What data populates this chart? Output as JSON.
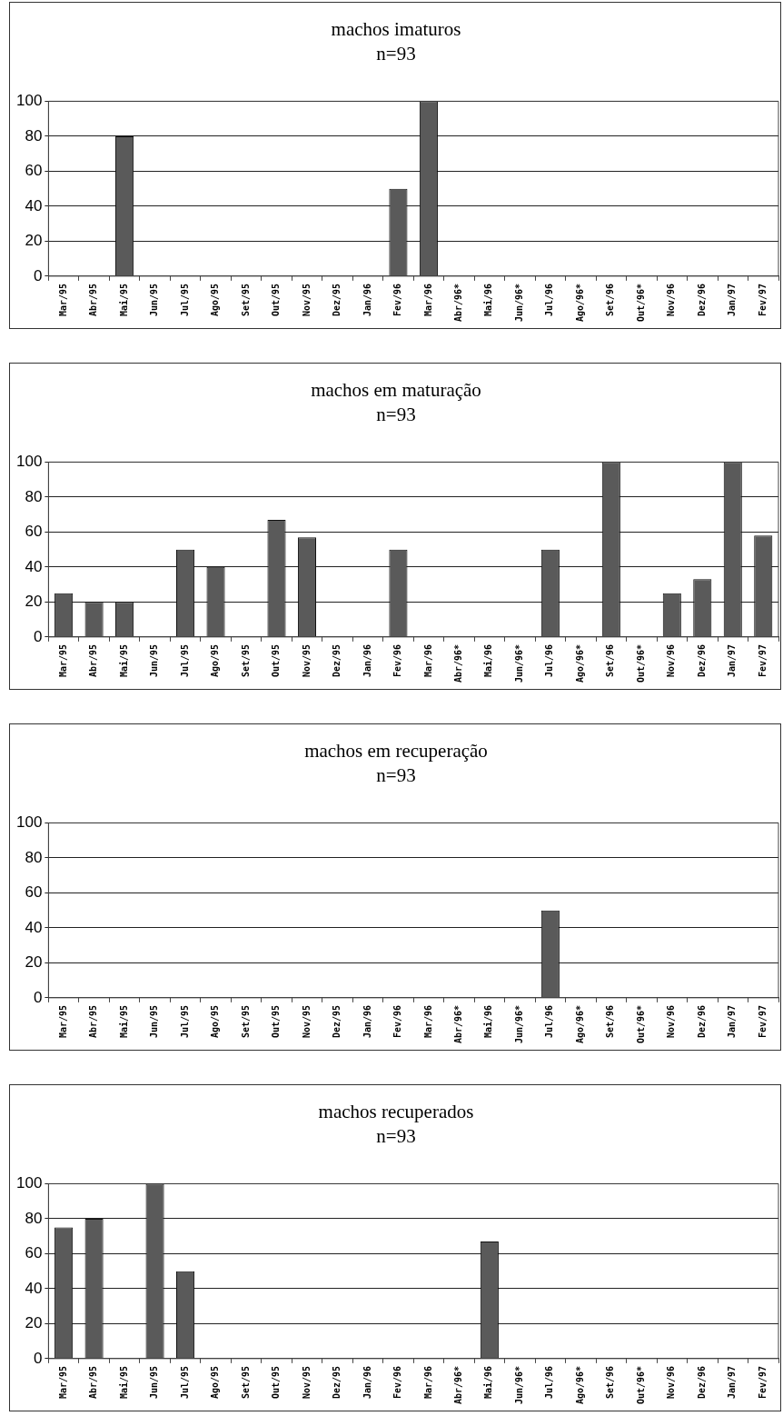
{
  "chart_data": [
    {
      "type": "bar",
      "title": "machos imaturos",
      "subtitle": "n=93",
      "categories": [
        "Mar/95",
        "Abr/95",
        "Mai/95",
        "Jun/95",
        "Jul/95",
        "Ago/95",
        "Set/95",
        "Out/95",
        "Nov/95",
        "Dez/95",
        "Jan/96",
        "Fev/96",
        "Mar/96",
        "Abr/96*",
        "Mai/96",
        "Jun/96*",
        "Jul/96",
        "Ago/96*",
        "Set/96",
        "Out/96*",
        "Nov/96",
        "Dez/96",
        "Jan/97",
        "Fev/97"
      ],
      "values": [
        0,
        0,
        80,
        0,
        0,
        0,
        0,
        0,
        0,
        0,
        0,
        50,
        100,
        0,
        0,
        0,
        0,
        0,
        0,
        0,
        0,
        0,
        0,
        0
      ],
      "color": "#5a5a5a",
      "ylim": [
        0,
        100
      ],
      "yticks": [
        0,
        20,
        40,
        60,
        80,
        100
      ],
      "grid": "y",
      "legend": false
    },
    {
      "type": "bar",
      "title": "machos em maturação",
      "subtitle": "n=93",
      "categories": [
        "Mar/95",
        "Abr/95",
        "Mai/95",
        "Jun/95",
        "Jul/95",
        "Ago/95",
        "Set/95",
        "Out/95",
        "Nov/95",
        "Dez/95",
        "Jan/96",
        "Fev/96",
        "Mar/96",
        "Abr/96*",
        "Mai/96",
        "Jun/96*",
        "Jul/96",
        "Ago/96*",
        "Set/96",
        "Out/96*",
        "Nov/96",
        "Dez/96",
        "Jan/97",
        "Fev/97"
      ],
      "values": [
        25,
        20,
        20,
        0,
        50,
        40,
        0,
        67,
        57,
        0,
        0,
        50,
        0,
        0,
        0,
        0,
        50,
        0,
        100,
        0,
        25,
        33,
        100,
        58
      ],
      "color": "#5a5a5a",
      "ylim": [
        0,
        100
      ],
      "yticks": [
        0,
        20,
        40,
        60,
        80,
        100
      ],
      "grid": "y",
      "legend": false
    },
    {
      "type": "bar",
      "title": "machos em recuperação",
      "subtitle": "n=93",
      "categories": [
        "Mar/95",
        "Abr/95",
        "Mai/95",
        "Jun/95",
        "Jul/95",
        "Ago/95",
        "Set/95",
        "Out/95",
        "Nov/95",
        "Dez/95",
        "Jan/96",
        "Fev/96",
        "Mar/96",
        "Abr/96*",
        "Mai/96",
        "Jun/96*",
        "Jul/96",
        "Ago/96*",
        "Set/96",
        "Out/96*",
        "Nov/96",
        "Dez/96",
        "Jan/97",
        "Fev/97"
      ],
      "values": [
        0,
        0,
        0,
        0,
        0,
        0,
        0,
        0,
        0,
        0,
        0,
        0,
        0,
        0,
        0,
        0,
        50,
        0,
        0,
        0,
        0,
        0,
        0,
        0
      ],
      "color": "#5a5a5a",
      "ylim": [
        0,
        100
      ],
      "yticks": [
        0,
        20,
        40,
        60,
        80,
        100
      ],
      "grid": "y",
      "legend": false
    },
    {
      "type": "bar",
      "title": "machos recuperados",
      "subtitle": "n=93",
      "categories": [
        "Mar/95",
        "Abr/95",
        "Mai/95",
        "Jun/95",
        "Jul/95",
        "Ago/95",
        "Set/95",
        "Out/95",
        "Nov/95",
        "Dez/95",
        "Jan/96",
        "Fev/96",
        "Mar/96",
        "Abr/96*",
        "Mai/96",
        "Jun/96*",
        "Jul/96",
        "Ago/96*",
        "Set/96",
        "Out/96*",
        "Nov/96",
        "Dez/96",
        "Jan/97",
        "Fev/97"
      ],
      "values": [
        75,
        80,
        0,
        100,
        50,
        0,
        0,
        0,
        0,
        0,
        0,
        0,
        0,
        0,
        67,
        0,
        0,
        0,
        0,
        0,
        0,
        0,
        0,
        0
      ],
      "color": "#5a5a5a",
      "ylim": [
        0,
        100
      ],
      "yticks": [
        0,
        20,
        40,
        60,
        80,
        100
      ],
      "grid": "y",
      "legend": false
    }
  ]
}
